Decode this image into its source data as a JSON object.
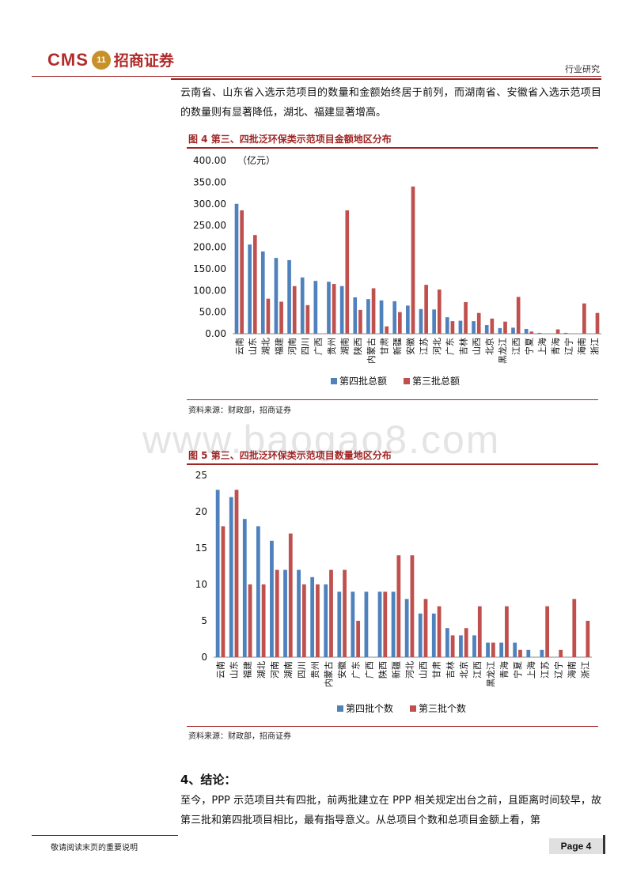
{
  "header": {
    "logo_cms": "CMS",
    "logo_badge": "11",
    "logo_cn": "招商证券",
    "right_label": "行业研究"
  },
  "intro_paragraph": "云南省、山东省入选示范项目的数量和金额始终居于前列，而湖南省、安徽省入选示范项目的数量则有显著降低，湖北、福建显著增高。",
  "figure4": {
    "title": "图 4 第三、四批泛环保类示范项目金额地区分布",
    "source": "资料来源：财政部，招商证券"
  },
  "figure5": {
    "title": "图 5 第三、四批泛环保类示范项目数量地区分布",
    "source": "资料来源：财政部，招商证券"
  },
  "watermark": "www.baogao8.com",
  "section": {
    "heading": "4、结论：",
    "paragraph": "至今，PPP 示范项目共有四批，前两批建立在 PPP 相关规定出台之前，且距离时间较早，故第三批和第四批项目相比，最有指导意义。从总项目个数和总项目金额上看，第"
  },
  "footer": {
    "note": "敬请阅读末页的重要说明",
    "page": "Page 4"
  },
  "colors": {
    "series4": "#4f81bd",
    "series3": "#c0504d",
    "accent": "#a02626"
  },
  "chart_data": [
    {
      "type": "bar",
      "title": "图 4 第三、四批泛环保类示范项目金额地区分布",
      "unit_label": "（亿元）",
      "ylim": [
        0,
        400
      ],
      "yticks": [
        "0.00",
        "50.00",
        "100.00",
        "150.00",
        "200.00",
        "250.00",
        "300.00",
        "350.00",
        "400.00"
      ],
      "categories": [
        "云南",
        "山东",
        "湖北",
        "福建",
        "河南",
        "四川",
        "广西",
        "贵州",
        "湖南",
        "陕西",
        "内蒙古",
        "甘肃",
        "新疆",
        "安徽",
        "江苏",
        "河北",
        "广东",
        "吉林",
        "山西",
        "北京",
        "黑龙江",
        "江西",
        "宁夏",
        "上海",
        "青海",
        "辽宁",
        "海南",
        "浙江"
      ],
      "series": [
        {
          "name": "第四批总额",
          "values": [
            300,
            206,
            190,
            175,
            170,
            130,
            122,
            120,
            110,
            84,
            80,
            77,
            75,
            65,
            57,
            56,
            38,
            30,
            29,
            20,
            13,
            14,
            11,
            2,
            0,
            2,
            0,
            0
          ]
        },
        {
          "name": "第三批总额",
          "values": [
            285,
            228,
            81,
            74,
            110,
            66,
            0,
            115,
            285,
            55,
            105,
            17,
            50,
            340,
            113,
            102,
            29,
            73,
            48,
            35,
            28,
            85,
            5,
            0,
            10,
            0,
            70,
            48
          ]
        }
      ],
      "legend": "bottom"
    },
    {
      "type": "bar",
      "title": "图 5 第三、四批泛环保类示范项目数量地区分布",
      "ylim": [
        0,
        25
      ],
      "yticks": [
        "0",
        "5",
        "10",
        "15",
        "20",
        "25"
      ],
      "categories": [
        "云南",
        "山东",
        "福建",
        "湖北",
        "河南",
        "湖南",
        "四川",
        "贵州",
        "内蒙古",
        "安徽",
        "广东",
        "广西",
        "陕西",
        "新疆",
        "河北",
        "山西",
        "甘肃",
        "吉林",
        "北京",
        "江西",
        "黑龙江",
        "青海",
        "宁夏",
        "上海",
        "江苏",
        "辽宁",
        "海南",
        "浙江"
      ],
      "series": [
        {
          "name": "第四批个数",
          "values": [
            23,
            22,
            19,
            18,
            16,
            12,
            12,
            11,
            10,
            9,
            9,
            9,
            9,
            9,
            8,
            6,
            6,
            4,
            3,
            3,
            2,
            2,
            2,
            1,
            1,
            0,
            0,
            0
          ]
        },
        {
          "name": "第三批个数",
          "values": [
            18,
            23,
            10,
            10,
            12,
            17,
            10,
            10,
            12,
            12,
            5,
            0,
            9,
            14,
            14,
            8,
            7,
            3,
            4,
            7,
            2,
            7,
            1,
            0,
            7,
            1,
            8,
            5
          ]
        }
      ],
      "legend": "bottom"
    }
  ]
}
